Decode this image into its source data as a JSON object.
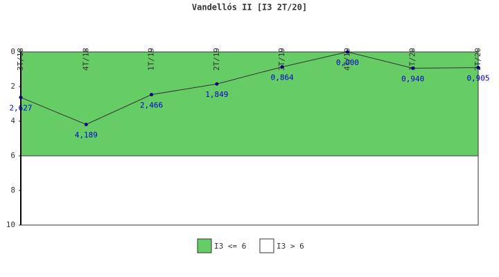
{
  "chart_data": {
    "type": "line",
    "title": "Vandellós II [I3 2T/20]",
    "categories": [
      "3T/18",
      "4T/18",
      "1T/19",
      "2T/19",
      "3T/19",
      "4T/19",
      "1T/20",
      "2T/20"
    ],
    "series": [
      {
        "color": "#333333",
        "marker_color": "#000080",
        "label_color": "#0000cc",
        "values": [
          2.627,
          4.189,
          2.466,
          1.849,
          0.864,
          0.0,
          0.94,
          0.905
        ],
        "value_labels": [
          "2,627",
          "4,189",
          "2,466",
          "1,849",
          "0,864",
          "0,000",
          "0,940",
          "0,905"
        ]
      }
    ],
    "bands": [
      {
        "name": "I3 <= 6",
        "color": "#66cc66",
        "from": 0,
        "to": 6
      },
      {
        "name": "I3 > 6",
        "color": "#ffffff",
        "from": 6,
        "to": 10
      }
    ],
    "ylim": [
      0,
      10
    ],
    "y_inverted": true,
    "yticks": [
      0,
      2,
      4,
      6,
      8,
      10
    ]
  }
}
